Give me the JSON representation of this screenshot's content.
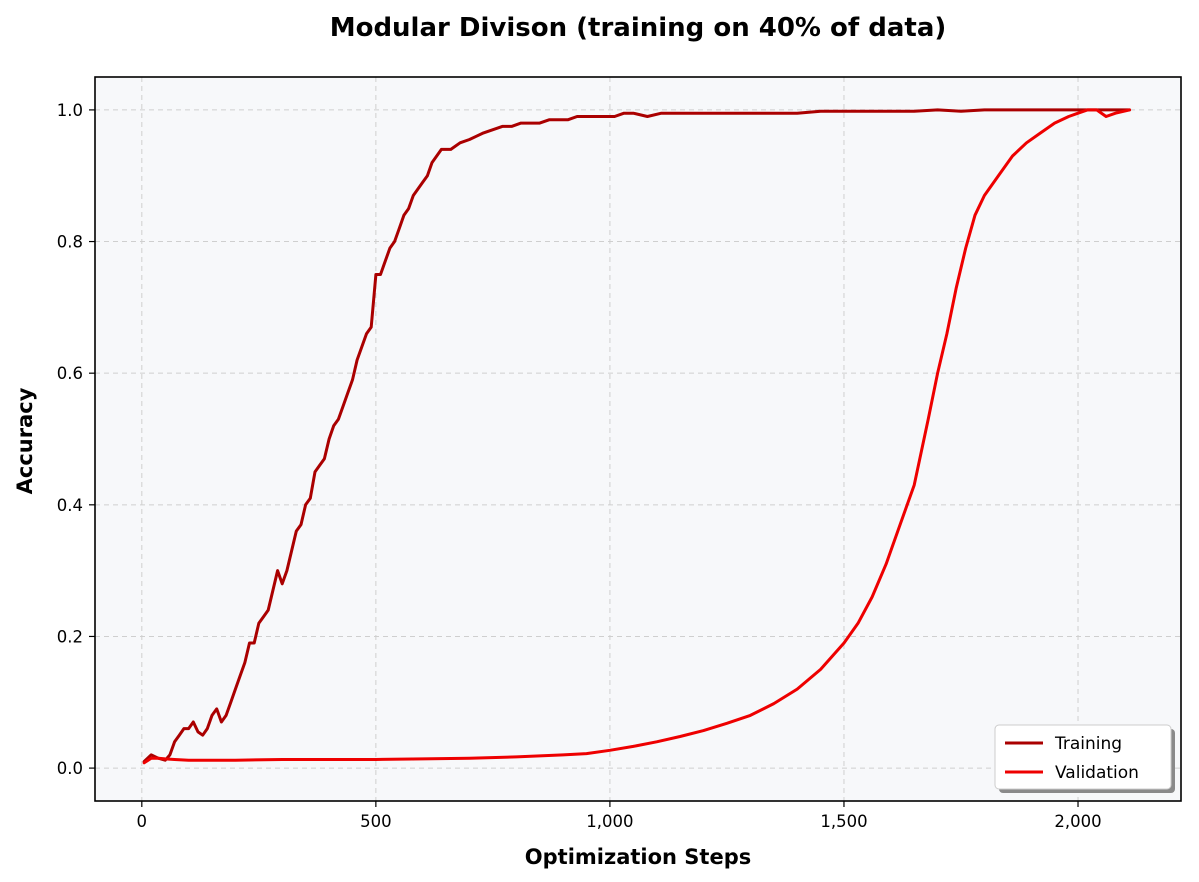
{
  "chart_data": {
    "type": "line",
    "title": "Modular Divison (training on 40% of data)",
    "xlabel": "Optimization Steps",
    "ylabel": "Accuracy",
    "xlim": [
      -100,
      2220
    ],
    "ylim": [
      -0.05,
      1.05
    ],
    "xticks": [
      0,
      500,
      1000,
      1500,
      2000
    ],
    "xtick_labels": [
      "0",
      "500",
      "1,000",
      "1,500",
      "2,000"
    ],
    "yticks": [
      0.0,
      0.2,
      0.4,
      0.6,
      0.8,
      1.0
    ],
    "ytick_labels": [
      "0.0",
      "0.2",
      "0.4",
      "0.6",
      "0.8",
      "1.0"
    ],
    "grid": true,
    "legend_position": "lower-right",
    "series": [
      {
        "name": "Training",
        "color": "#aa0000",
        "x": [
          5,
          20,
          35,
          50,
          60,
          70,
          80,
          90,
          100,
          110,
          120,
          130,
          140,
          150,
          160,
          170,
          180,
          190,
          200,
          210,
          220,
          230,
          240,
          250,
          260,
          270,
          280,
          290,
          300,
          310,
          320,
          330,
          340,
          350,
          360,
          370,
          380,
          390,
          400,
          410,
          420,
          430,
          440,
          450,
          460,
          470,
          480,
          490,
          500,
          510,
          520,
          530,
          540,
          550,
          560,
          570,
          580,
          590,
          600,
          610,
          620,
          630,
          640,
          660,
          680,
          700,
          715,
          730,
          750,
          770,
          790,
          810,
          830,
          850,
          870,
          890,
          910,
          930,
          950,
          970,
          990,
          1010,
          1030,
          1050,
          1080,
          1110,
          1140,
          1170,
          1200,
          1240,
          1280,
          1320,
          1360,
          1400,
          1450,
          1500,
          1550,
          1600,
          1650,
          1700,
          1750,
          1800,
          1850,
          1900,
          1950,
          2000,
          2050,
          2080,
          2110
        ],
        "values": [
          0.01,
          0.02,
          0.015,
          0.012,
          0.02,
          0.04,
          0.05,
          0.06,
          0.06,
          0.07,
          0.055,
          0.05,
          0.06,
          0.08,
          0.09,
          0.07,
          0.08,
          0.1,
          0.12,
          0.14,
          0.16,
          0.19,
          0.19,
          0.22,
          0.23,
          0.24,
          0.27,
          0.3,
          0.28,
          0.3,
          0.33,
          0.36,
          0.37,
          0.4,
          0.41,
          0.45,
          0.46,
          0.47,
          0.5,
          0.52,
          0.53,
          0.55,
          0.57,
          0.59,
          0.62,
          0.64,
          0.66,
          0.67,
          0.75,
          0.75,
          0.77,
          0.79,
          0.8,
          0.82,
          0.84,
          0.85,
          0.87,
          0.88,
          0.89,
          0.9,
          0.92,
          0.93,
          0.94,
          0.94,
          0.95,
          0.955,
          0.96,
          0.965,
          0.97,
          0.975,
          0.975,
          0.98,
          0.98,
          0.98,
          0.985,
          0.985,
          0.985,
          0.99,
          0.99,
          0.99,
          0.99,
          0.99,
          0.995,
          0.995,
          0.99,
          0.995,
          0.995,
          0.995,
          0.995,
          0.995,
          0.995,
          0.995,
          0.995,
          0.995,
          0.998,
          0.998,
          0.998,
          0.998,
          0.998,
          1.0,
          0.998,
          1.0,
          1.0,
          1.0,
          1.0,
          1.0,
          1.0,
          1.0,
          1.0
        ]
      },
      {
        "name": "Validation",
        "color": "#ee0000",
        "x": [
          5,
          20,
          35,
          50,
          70,
          100,
          150,
          200,
          300,
          400,
          500,
          600,
          700,
          800,
          900,
          950,
          1000,
          1050,
          1100,
          1150,
          1200,
          1250,
          1300,
          1350,
          1400,
          1450,
          1500,
          1530,
          1560,
          1590,
          1620,
          1650,
          1680,
          1700,
          1720,
          1740,
          1760,
          1780,
          1800,
          1830,
          1860,
          1890,
          1920,
          1950,
          1980,
          2000,
          2020,
          2040,
          2060,
          2080,
          2110
        ],
        "values": [
          0.008,
          0.015,
          0.015,
          0.014,
          0.013,
          0.012,
          0.012,
          0.012,
          0.013,
          0.013,
          0.013,
          0.014,
          0.015,
          0.017,
          0.02,
          0.022,
          0.027,
          0.033,
          0.04,
          0.048,
          0.057,
          0.068,
          0.08,
          0.098,
          0.12,
          0.15,
          0.19,
          0.22,
          0.26,
          0.31,
          0.37,
          0.43,
          0.53,
          0.6,
          0.66,
          0.73,
          0.79,
          0.84,
          0.87,
          0.9,
          0.93,
          0.95,
          0.965,
          0.98,
          0.99,
          0.995,
          1.0,
          1.0,
          0.99,
          0.995,
          1.0
        ]
      }
    ]
  }
}
